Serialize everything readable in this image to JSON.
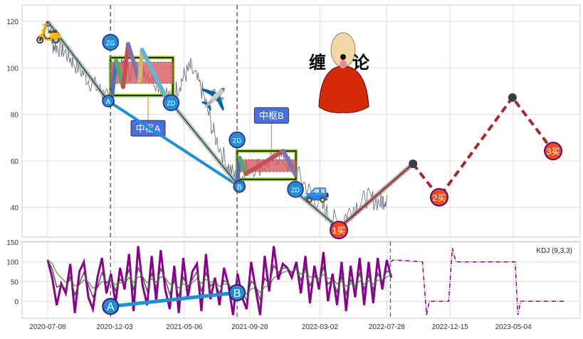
{
  "chart_data": [
    {
      "type": "line",
      "panel": "price",
      "ylim": [
        27,
        127
      ],
      "yticks": [
        40,
        60,
        80,
        100,
        120
      ],
      "grid": true,
      "price_series": {
        "dates": [
          "2020-07-08",
          "2020-07-20",
          "2020-08-10",
          "2020-09-01",
          "2020-10-01",
          "2020-11-01",
          "2020-11-19",
          "2020-12-10",
          "2021-01-05",
          "2021-02-01",
          "2021-03-01",
          "2021-04-07",
          "2021-05-01",
          "2021-05-20",
          "2021-06-15",
          "2021-07-10",
          "2021-08-10",
          "2021-09-05",
          "2021-09-20",
          "2021-11-01",
          "2021-12-01",
          "2022-01-07",
          "2022-02-10",
          "2022-03-15",
          "2022-04-13",
          "2022-05-15",
          "2022-06-15",
          "2022-07-15",
          "2022-07-30"
        ],
        "values": [
          120,
          110,
          108,
          103,
          96,
          90,
          86,
          102,
          98,
          100,
          95,
          87,
          95,
          100,
          90,
          72,
          58,
          50,
          57,
          58,
          62,
          56,
          46,
          38,
          33,
          40,
          44,
          42,
          45
        ]
      },
      "strokes": [
        {
          "color": "#1f8fd6",
          "points": [
            [
              "2020-11-19",
              85.7
            ],
            [
              "2021-09-05",
              48.9
            ]
          ]
        },
        {
          "color": "#97b3a0",
          "halo": true,
          "points": [
            [
              "2020-07-08",
              120
            ],
            [
              "2020-11-19",
              85.7
            ]
          ]
        },
        {
          "color": "#97b3a0",
          "halo": true,
          "points": [
            [
              "2021-04-07",
              85
            ],
            [
              "2021-09-05",
              48.9
            ]
          ]
        },
        {
          "color": "#97b3a0",
          "halo": true,
          "points": [
            [
              "2021-12-30",
              48
            ],
            [
              "2022-04-13",
              31
            ]
          ]
        },
        {
          "color": "#b76e6e",
          "halo": true,
          "points": [
            [
              "2022-04-13",
              31
            ],
            [
              "2022-09-24",
              58.7
            ]
          ]
        },
        {
          "color": "#4c72b0",
          "points": [
            [
              "2020-11-27",
              87.8
            ],
            [
              "2020-12-06",
              103.1
            ]
          ]
        },
        {
          "color": "#55a868",
          "points": [
            [
              "2020-12-06",
              103.1
            ],
            [
              "2020-12-22",
              91.8
            ]
          ]
        },
        {
          "color": "#c44e52",
          "points": [
            [
              "2020-12-22",
              91.8
            ],
            [
              "2021-01-02",
              110.2
            ]
          ]
        },
        {
          "color": "#8172b2",
          "points": [
            [
              "2021-01-02",
              110.2
            ],
            [
              "2021-01-27",
              94
            ]
          ]
        },
        {
          "color": "#ccb974",
          "points": [
            [
              "2021-01-27",
              94
            ],
            [
              "2021-02-02",
              107.7
            ]
          ]
        },
        {
          "color": "#64b5cd",
          "points": [
            [
              "2021-02-02",
              107.7
            ],
            [
              "2021-04-06",
              83.2
            ]
          ]
        },
        {
          "color": "#4c72b0",
          "points": [
            [
              "2021-08-31",
              51
            ],
            [
              "2021-09-06",
              61.2
            ]
          ]
        },
        {
          "color": "#55a868",
          "points": [
            [
              "2021-09-06",
              61.2
            ],
            [
              "2021-09-19",
              54.4
            ]
          ]
        },
        {
          "color": "#c44e52",
          "points": [
            [
              "2021-09-19",
              54.4
            ],
            [
              "2021-12-11",
              64.2
            ]
          ]
        },
        {
          "color": "#8172b2",
          "points": [
            [
              "2021-12-11",
              64.2
            ],
            [
              "2022-01-07",
              54
            ]
          ]
        }
      ],
      "projection": {
        "color": "#a52a2a",
        "points": [
          [
            "2022-09-24",
            58.7
          ],
          [
            "2022-11-21",
            44.3
          ],
          [
            "2023-05-02",
            87.2
          ],
          [
            "2023-07-31",
            64.2
          ]
        ]
      },
      "pivots": [
        {
          "label": "中枢A",
          "outer": [
            88.1,
            104.4
          ],
          "inner": [
            93.3,
            102.5
          ],
          "start": "2020-11-24",
          "end": "2021-04-11",
          "label_at": [
            "2021-02-15",
            74
          ]
        },
        {
          "label": "中枢B",
          "outer": [
            52,
            64.2
          ],
          "inner": [
            55.3,
            60.5
          ],
          "start": "2021-08-31",
          "end": "2022-01-08",
          "label_at": [
            "2021-11-15",
            79.5
          ]
        }
      ],
      "markers": [
        {
          "label": "A",
          "date": "2020-11-19",
          "value": 85.7,
          "kind": "point"
        },
        {
          "label": "B",
          "date": "2021-09-05",
          "value": 48.9,
          "kind": "point"
        },
        {
          "label": "ZG",
          "date": "2020-11-24",
          "value": 111,
          "kind": "point"
        },
        {
          "label": "ZD",
          "date": "2021-04-07",
          "value": 85,
          "kind": "point"
        },
        {
          "label": "ZG",
          "date": "2021-08-31",
          "value": 69,
          "kind": "point"
        },
        {
          "label": "ZD",
          "date": "2022-01-07",
          "value": 47.7,
          "kind": "point"
        },
        {
          "label": "1买",
          "date": "2022-04-13",
          "value": 30.2,
          "kind": "buy"
        },
        {
          "label": "2买",
          "date": "2022-11-21",
          "value": 44.3,
          "kind": "buy"
        },
        {
          "label": "3买",
          "date": "2023-07-31",
          "value": 64.2,
          "kind": "buy"
        }
      ],
      "dark_points": [
        [
          "2022-09-24",
          58.7
        ],
        [
          "2023-05-02",
          87.2
        ]
      ],
      "vlines": [
        "2020-11-24",
        "2021-08-31"
      ],
      "emojis": [
        {
          "icon": "scooter",
          "glyph": "🛵",
          "date": "2020-07-09",
          "value": 116
        },
        {
          "icon": "airplane",
          "glyph": "✈️",
          "date": "2021-07-10",
          "value": 87
        },
        {
          "icon": "car",
          "glyph": "🚙",
          "date": "2022-02-23",
          "value": 47.5
        }
      ],
      "logo": {
        "text_left": "缠",
        "text_right": "论"
      }
    },
    {
      "type": "line",
      "panel": "indicator",
      "legend": "KDJ (9,3,3)",
      "legend_placement": "top-right",
      "ylim": [
        -45,
        152
      ],
      "yticks": [
        0,
        50,
        100,
        150
      ],
      "grid": true,
      "xticks": [
        "2020-07-08",
        "2020-12-03",
        "2021-05-06",
        "2021-09-28",
        "2022-03-02",
        "2022-07-28",
        "2022-12-15",
        "2023-05-04"
      ],
      "j_series": {
        "start": "2020-07-08",
        "step_days": 10,
        "values": [
          105,
          60,
          -10,
          45,
          20,
          95,
          -30,
          75,
          100,
          10,
          -20,
          60,
          110,
          20,
          70,
          -5,
          85,
          30,
          120,
          -25,
          140,
          40,
          -10,
          115,
          0,
          130,
          30,
          -20,
          90,
          -30,
          110,
          10,
          75,
          95,
          -25,
          120,
          5,
          60,
          -10,
          85,
          40,
          -35,
          70,
          10,
          -20,
          100,
          30,
          -35,
          115,
          25,
          140,
          55,
          95,
          85,
          60,
          100,
          20,
          115,
          -5,
          90,
          30,
          125,
          0,
          70,
          -10,
          100,
          -25,
          90,
          10,
          110,
          -10,
          100,
          -5,
          110,
          30,
          105,
          60
        ]
      },
      "projection": {
        "points": [
          [
            "2022-08-05",
            100
          ],
          [
            "2022-08-12",
            105
          ],
          [
            "2022-10-15",
            100
          ],
          [
            "2022-10-24",
            -35
          ],
          [
            "2022-10-30",
            0
          ],
          [
            "2022-12-12",
            0
          ],
          [
            "2022-12-20",
            135
          ],
          [
            "2022-12-28",
            100
          ],
          [
            "2023-05-08",
            100
          ],
          [
            "2023-05-14",
            -35
          ],
          [
            "2023-05-20",
            0
          ],
          [
            "2023-08-25",
            0
          ]
        ]
      },
      "strokes": [
        {
          "color": "#1f8fd6",
          "points": [
            [
              "2020-11-24",
              -13
            ],
            [
              "2021-08-31",
              22
            ]
          ]
        }
      ],
      "markers": [
        {
          "label": "A",
          "date": "2020-11-24",
          "value": -13
        },
        {
          "label": "B",
          "date": "2021-08-31",
          "value": 22
        }
      ],
      "vlines": [
        "2020-11-24",
        "2021-08-31",
        "2022-08-05"
      ],
      "colors": {
        "J": "#8b008b",
        "K": "#555555",
        "D": "#7a9a6a"
      }
    }
  ]
}
